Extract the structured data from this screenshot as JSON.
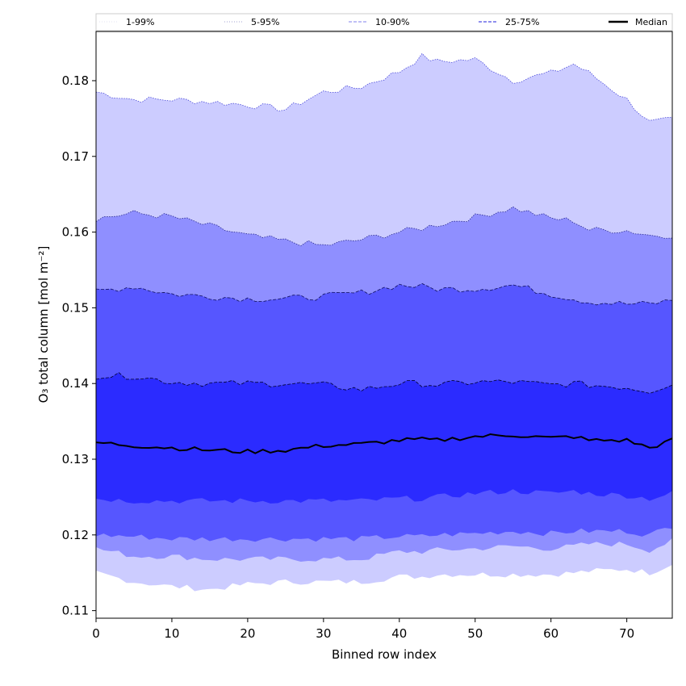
{
  "chart_data": {
    "type": "area",
    "title": "",
    "xlabel": "Binned row index",
    "ylabel": "O₃ total column [mol m⁻²]",
    "xlim": [
      0,
      76
    ],
    "ylim": [
      0.109,
      0.1865
    ],
    "xticks": [
      0,
      10,
      20,
      30,
      40,
      50,
      60,
      70
    ],
    "yticks": [
      0.11,
      0.12,
      0.13,
      0.14,
      0.15,
      0.16,
      0.17,
      0.18
    ],
    "ytick_labels": [
      "0.11",
      "0.12",
      "0.13",
      "0.14",
      "0.15",
      "0.16",
      "0.17",
      "0.18"
    ],
    "legend_position": "top (above plot, single row)",
    "colors": {
      "band_1_99": "#ccccff",
      "band_5_95": "#8f8fff",
      "band_10_90": "#5656ff",
      "band_25_75": "#2b2bff",
      "median_line": "#000000"
    },
    "anchor_x": [
      0,
      5,
      10,
      15,
      20,
      25,
      30,
      35,
      40,
      43,
      45,
      50,
      55,
      60,
      63,
      65,
      70,
      73,
      76
    ],
    "bands": [
      {
        "name": "1-99%",
        "color": "#ccccff",
        "upper": [
          0.1785,
          0.1775,
          0.1775,
          0.1772,
          0.1768,
          0.1762,
          0.1785,
          0.1792,
          0.1812,
          0.1832,
          0.1825,
          0.1828,
          0.18,
          0.181,
          0.1822,
          0.181,
          0.1775,
          0.1745,
          0.1748
        ],
        "lower": [
          0.115,
          0.1138,
          0.1132,
          0.1128,
          0.1135,
          0.1138,
          0.1138,
          0.1138,
          0.1145,
          0.1145,
          0.1148,
          0.1148,
          0.1148,
          0.1148,
          0.115,
          0.1152,
          0.1155,
          0.115,
          0.1162
        ]
      },
      {
        "name": "5-95%",
        "color": "#8f8fff",
        "upper": [
          0.1618,
          0.1625,
          0.162,
          0.1608,
          0.1595,
          0.1588,
          0.1582,
          0.159,
          0.16,
          0.1605,
          0.161,
          0.162,
          0.1632,
          0.1618,
          0.1615,
          0.1603,
          0.1602,
          0.1596,
          0.1596
        ],
        "lower": [
          0.1182,
          0.1172,
          0.1172,
          0.1168,
          0.1168,
          0.1168,
          0.1168,
          0.1168,
          0.1178,
          0.1178,
          0.118,
          0.1182,
          0.1185,
          0.1182,
          0.1185,
          0.1188,
          0.1188,
          0.118,
          0.1192
        ]
      },
      {
        "name": "10-90%",
        "color": "#5656ff",
        "upper": [
          0.1522,
          0.1528,
          0.1518,
          0.1515,
          0.1512,
          0.1512,
          0.1515,
          0.152,
          0.153,
          0.1528,
          0.1525,
          0.1525,
          0.153,
          0.1518,
          0.1512,
          0.1508,
          0.1505,
          0.1505,
          0.151
        ],
        "lower": [
          0.12,
          0.1198,
          0.1195,
          0.1195,
          0.1195,
          0.1195,
          0.1195,
          0.1195,
          0.1198,
          0.1198,
          0.12,
          0.1202,
          0.1205,
          0.1202,
          0.1205,
          0.1205,
          0.1205,
          0.12,
          0.1212
        ]
      },
      {
        "name": "25-75%",
        "color": "#2b2bff",
        "upper": [
          0.141,
          0.141,
          0.1402,
          0.14,
          0.14,
          0.14,
          0.1398,
          0.1392,
          0.14,
          0.14,
          0.1398,
          0.1402,
          0.1402,
          0.1398,
          0.14,
          0.1398,
          0.1395,
          0.139,
          0.14
        ],
        "lower": [
          0.1248,
          0.1245,
          0.1245,
          0.1245,
          0.1245,
          0.1245,
          0.1245,
          0.1245,
          0.1248,
          0.1248,
          0.125,
          0.1255,
          0.1258,
          0.1255,
          0.1258,
          0.1255,
          0.1252,
          0.1248,
          0.1255
        ]
      }
    ],
    "median": {
      "name": "Median",
      "values": [
        0.1322,
        0.1318,
        0.1315,
        0.1312,
        0.131,
        0.1312,
        0.1318,
        0.132,
        0.1325,
        0.1326,
        0.1325,
        0.133,
        0.1332,
        0.1328,
        0.133,
        0.1325,
        0.1325,
        0.1315,
        0.1325
      ]
    },
    "legend": [
      {
        "label": "1-99%",
        "style": "dotted",
        "color": "#ccccff"
      },
      {
        "label": "5-95%",
        "style": "dotted",
        "color": "#8f8fff"
      },
      {
        "label": "10-90%",
        "style": "dashed",
        "color": "#8f8fff"
      },
      {
        "label": "25-75%",
        "style": "dashed",
        "color": "#5656ff"
      },
      {
        "label": "Median",
        "style": "solid",
        "color": "#000000"
      }
    ]
  }
}
